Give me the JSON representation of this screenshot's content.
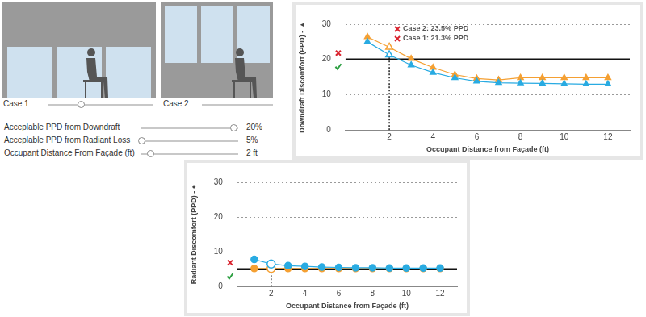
{
  "sliders": [
    {
      "label": "Acceplable PPD from Downdraft",
      "value": 20,
      "value_label": "20%",
      "range": [
        0,
        21
      ]
    },
    {
      "label": "Acceplable PPD from Radiant Loss",
      "value": 5,
      "value_label": "5%",
      "range": [
        5,
        30
      ]
    },
    {
      "label": "Occupant Distance From Façade (ft)",
      "value": 2,
      "value_label": "2 ft",
      "range": [
        1,
        12
      ]
    }
  ],
  "chart_data": [
    {
      "type": "line",
      "y_label": "Downdraft Discomfort (PPD) - ▲",
      "x_label": "Occupant Distance from Façade (ft)",
      "x": [
        1,
        2,
        3,
        4,
        5,
        6,
        7,
        8,
        9,
        10,
        11,
        12
      ],
      "series": [
        {
          "name": "Case 1",
          "color": "#29abe2",
          "marker": "triangle",
          "values": [
            25,
            21.3,
            18.4,
            16.3,
            14.8,
            13.8,
            13.4,
            13.3,
            13.2,
            13.1,
            13,
            13
          ]
        },
        {
          "name": "Case 2",
          "color": "#f5a033",
          "marker": "triangle",
          "values": [
            26.4,
            23.5,
            20.2,
            17.7,
            15.7,
            14.6,
            14.2,
            14.8,
            14.8,
            14.8,
            14.8,
            14.8
          ]
        }
      ],
      "xlim": [
        0,
        13
      ],
      "xticks": [
        2,
        4,
        6,
        8,
        10,
        12
      ],
      "ylim": [
        0,
        30
      ],
      "yticks": [
        0,
        10,
        20,
        30
      ],
      "grid": true,
      "threshold": 20,
      "selected_x": 2,
      "annotations": [
        {
          "series": "Case 2",
          "text": "Case 2: 23.5% PPD"
        },
        {
          "series": "Case 1",
          "text": "Case 1: 21.3% PPD"
        }
      ]
    },
    {
      "type": "line",
      "y_label": "Radiant Discomfort (PPD) - ●",
      "x_label": "Occupant Distance from Façade (ft)",
      "x": [
        1,
        2,
        3,
        4,
        5,
        6,
        7,
        8,
        9,
        10,
        11,
        12
      ],
      "series": [
        {
          "name": "Case 1",
          "color": "#29abe2",
          "marker": "circle",
          "values": [
            7.8,
            6.5,
            6,
            5.8,
            5.6,
            5.5,
            5.4,
            5.4,
            5.3,
            5.3,
            5.3,
            5.3
          ]
        },
        {
          "name": "Case 2",
          "color": "#f5a033",
          "marker": "circle",
          "values": [
            5.2,
            5.2,
            5.2,
            5.2,
            5.2,
            5.2,
            5.2,
            5.2,
            5.2,
            5.2,
            5.2,
            5.2
          ]
        }
      ],
      "xlim": [
        0,
        13
      ],
      "xticks": [
        2,
        4,
        6,
        8,
        10,
        12
      ],
      "ylim": [
        0,
        30
      ],
      "yticks": [
        0,
        10,
        20,
        30
      ],
      "grid": true,
      "threshold": 5,
      "selected_x": 2
    }
  ]
}
